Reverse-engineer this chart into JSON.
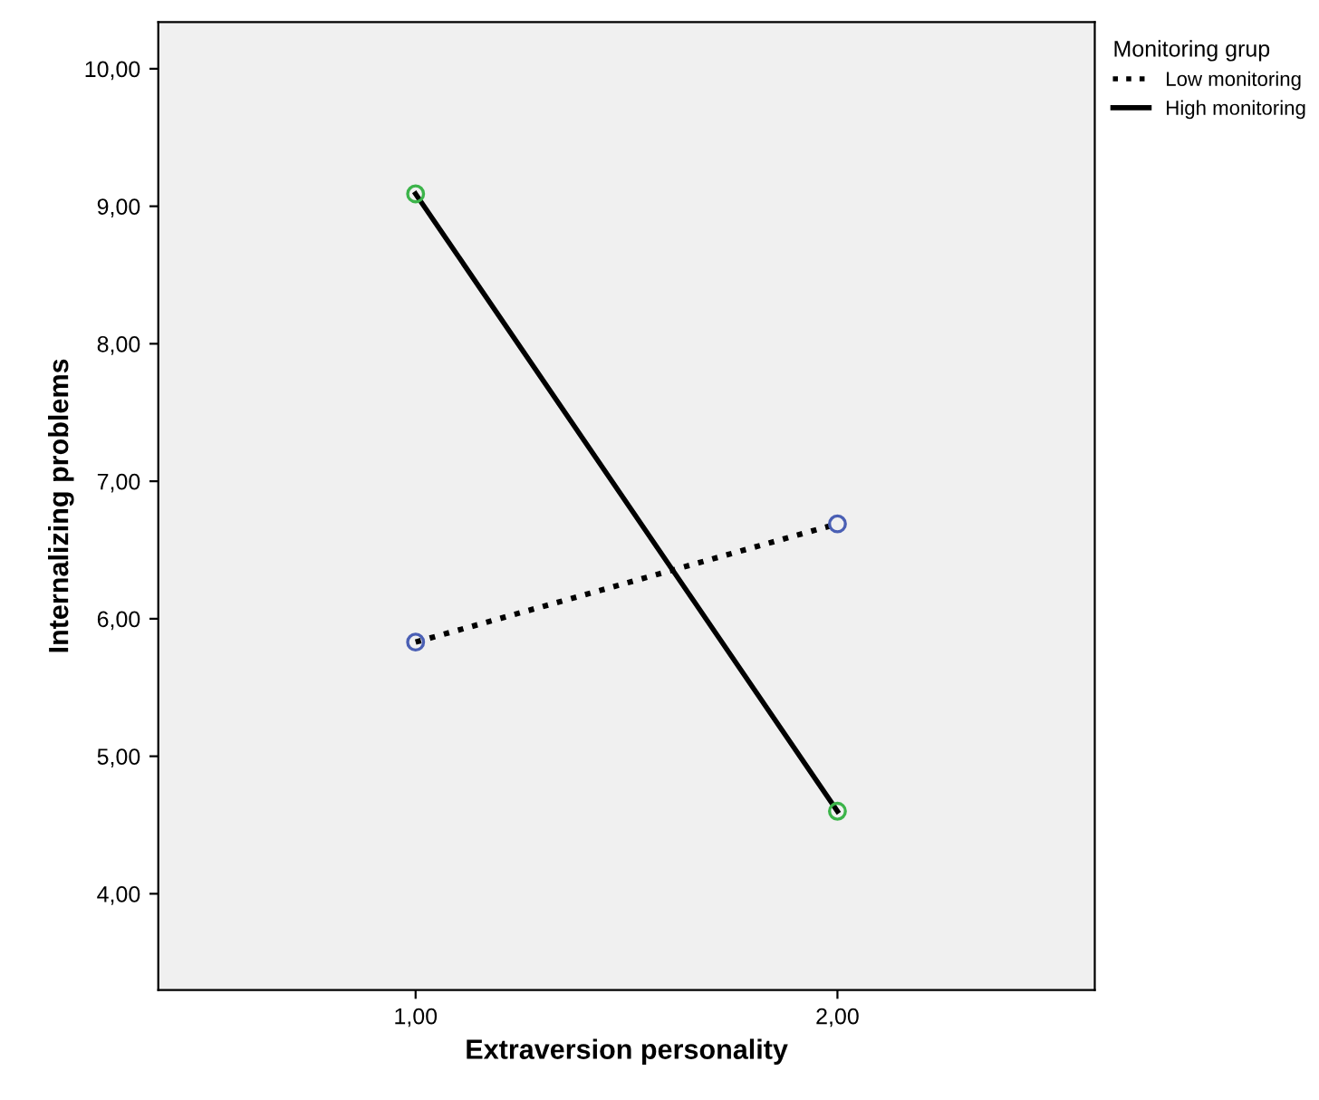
{
  "chart_data": {
    "type": "line",
    "xlabel": "Extraversion personality",
    "ylabel": "Internalizing problems",
    "legend_title": "Monitoring grup",
    "x": [
      1,
      2
    ],
    "series": [
      {
        "name": "Low monitoring",
        "color": "#000000",
        "colors": [
          "#4a5fb4",
          "#4a5fb4"
        ],
        "line_style": "dotted",
        "values": [
          5.83,
          6.69
        ]
      },
      {
        "name": "High monitoring",
        "color": "#000000",
        "colors": [
          "#3cb44a",
          "#3cb44a"
        ],
        "line_style": "solid",
        "values": [
          9.09,
          4.6
        ]
      }
    ],
    "xlim": [
      0.39,
      2.61
    ],
    "ylim": [
      3.3,
      10.34
    ],
    "xticks": [
      {
        "value": 1,
        "label": "1,00"
      },
      {
        "value": 2,
        "label": "2,00"
      }
    ],
    "yticks": [
      {
        "value": 4,
        "label": "4,00"
      },
      {
        "value": 5,
        "label": "5,00"
      },
      {
        "value": 6,
        "label": "6,00"
      },
      {
        "value": 7,
        "label": "7,00"
      },
      {
        "value": 8,
        "label": "8,00"
      },
      {
        "value": 9,
        "label": "9,00"
      },
      {
        "value": 10,
        "label": "10,00"
      }
    ],
    "marker": "circle",
    "legend": "top right",
    "grid": false
  }
}
